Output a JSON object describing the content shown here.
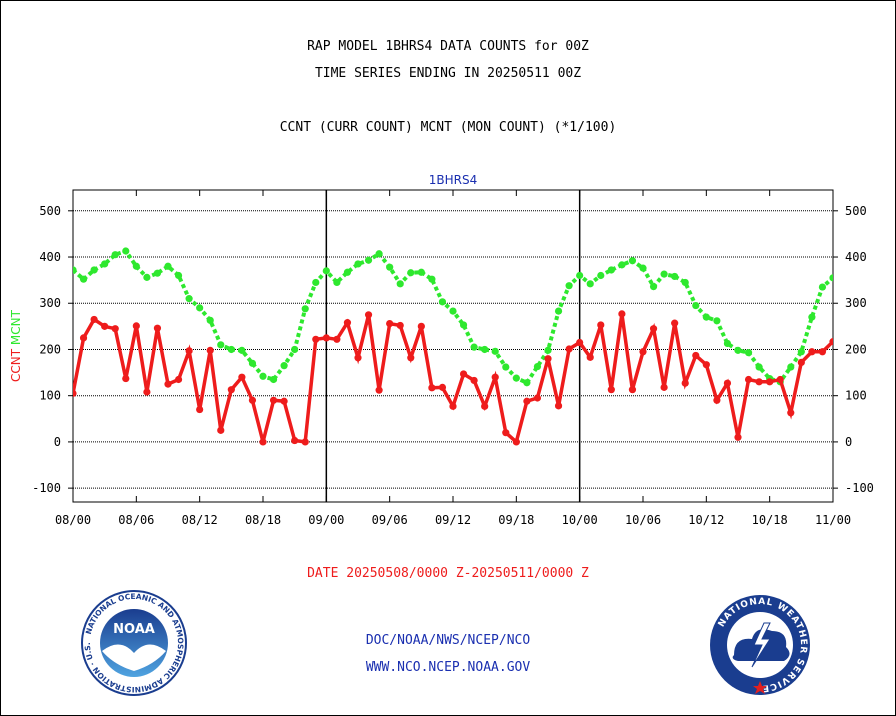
{
  "header": {
    "line1": "RAP MODEL 1BHRS4 DATA COUNTS for 00Z",
    "line2": "TIME SERIES ENDING IN 20250511 00Z",
    "line3": "CCNT (CURR COUNT) MCNT (MON COUNT) (*1/100)"
  },
  "footer": {
    "date_range": "DATE 20250508/0000 Z-20250511/0000 Z",
    "org_path": "DOC/NOAA/NWS/NCEP/NCO",
    "website": "WWW.NCO.NCEP.NOAA.GOV"
  },
  "logos": {
    "left": {
      "label": "NOAA",
      "ring_text": "NATIONAL OCEANIC AND ATMOSPHERIC ADMINISTRATION · U.S. DEPARTMENT OF COMMERCE",
      "color_primary": "#1a3d8f",
      "color_secondary": "#ffffff"
    },
    "right": {
      "ring_text": "NATIONAL WEATHER SERVICE",
      "color_primary": "#1a3d8f",
      "color_secondary": "#ffffff",
      "accent": "#e02020"
    }
  },
  "chart_data": {
    "type": "line",
    "title": "1BHRS4",
    "ylabel_left": [
      "CCNT",
      "MCNT"
    ],
    "ylim": [
      -130,
      545
    ],
    "yticks": [
      -100,
      0,
      100,
      200,
      300,
      400,
      500
    ],
    "xlim": [
      0,
      72
    ],
    "xticks": [
      {
        "x": 0,
        "label": "08/00"
      },
      {
        "x": 6,
        "label": "08/06"
      },
      {
        "x": 12,
        "label": "08/12"
      },
      {
        "x": 18,
        "label": "08/18"
      },
      {
        "x": 24,
        "label": "09/00"
      },
      {
        "x": 30,
        "label": "09/06"
      },
      {
        "x": 36,
        "label": "09/12"
      },
      {
        "x": 42,
        "label": "09/18"
      },
      {
        "x": 48,
        "label": "10/00"
      },
      {
        "x": 54,
        "label": "10/06"
      },
      {
        "x": 60,
        "label": "10/12"
      },
      {
        "x": 66,
        "label": "10/18"
      },
      {
        "x": 72,
        "label": "11/00"
      }
    ],
    "day_dividers": [
      24,
      48
    ],
    "grid": "horizontal",
    "series": [
      {
        "name": "CCNT",
        "color": "#ee1c1c",
        "style": "solid",
        "values": [
          105,
          225,
          265,
          250,
          245,
          137,
          251,
          108,
          246,
          125,
          135,
          197,
          70,
          198,
          25,
          113,
          140,
          90,
          0,
          90,
          88,
          3,
          0,
          222,
          225,
          222,
          258,
          182,
          275,
          112,
          256,
          252,
          182,
          250,
          117,
          118,
          77,
          147,
          133,
          77,
          140,
          20,
          0,
          88,
          95,
          180,
          78,
          201,
          215,
          183,
          253,
          113,
          277,
          113,
          195,
          245,
          118,
          257,
          127,
          187,
          167,
          90,
          127,
          10,
          135,
          130,
          130,
          135,
          63,
          172,
          195,
          195,
          217
        ],
        "note": ""
      },
      {
        "name": "MCNT",
        "color": "#2ee82e",
        "style": "dotted",
        "values": [
          372,
          352,
          372,
          385,
          405,
          413,
          380,
          356,
          365,
          380,
          360,
          310,
          290,
          263,
          210,
          200,
          198,
          170,
          142,
          135,
          165,
          200,
          288,
          345,
          370,
          345,
          367,
          385,
          393,
          407,
          378,
          342,
          366,
          367,
          352,
          303,
          283,
          253,
          205,
          200,
          196,
          162,
          138,
          128,
          163,
          198,
          283,
          338,
          360,
          342,
          360,
          372,
          383,
          392,
          376,
          336,
          363,
          358,
          345,
          295,
          270,
          262,
          213,
          198,
          193,
          162,
          137,
          130,
          162,
          195,
          270,
          335,
          355
        ]
      }
    ]
  }
}
